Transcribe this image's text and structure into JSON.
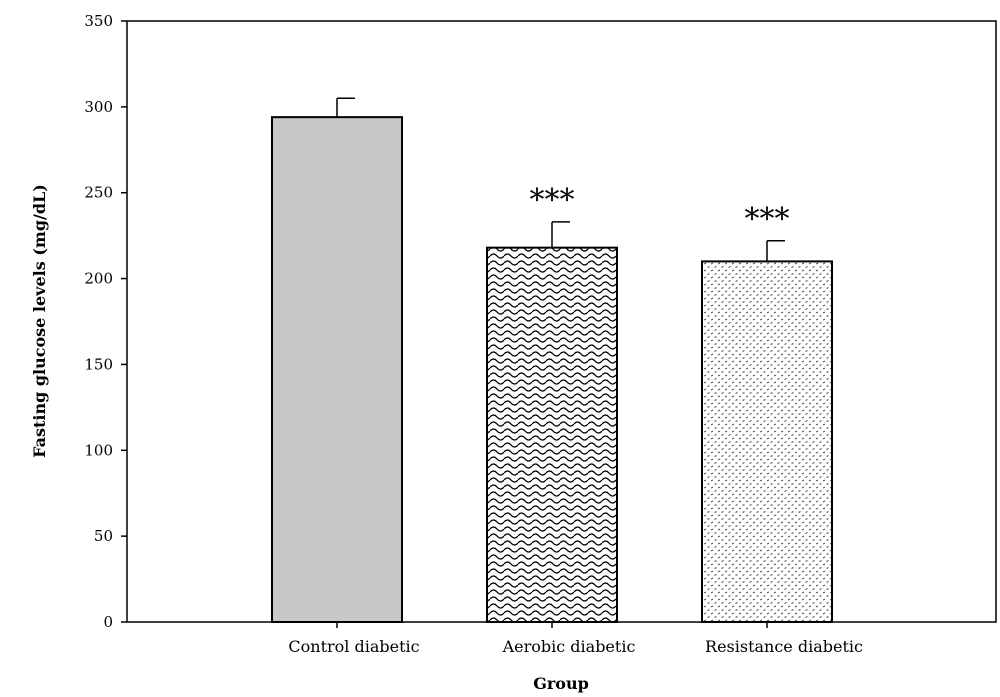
{
  "chart_data": {
    "type": "bar",
    "categories": [
      "Control diabetic",
      "Aerobic diabetic",
      "Resistance diabetic"
    ],
    "values": [
      294,
      218,
      210
    ],
    "error_upper": [
      305,
      233,
      222
    ],
    "annotations": [
      "",
      "***",
      "***"
    ],
    "xlabel": "Group",
    "ylabel": "Fasting glucose levels (mg/dL)",
    "ylim": [
      0,
      350
    ],
    "yticks": [
      0,
      50,
      100,
      150,
      200,
      250,
      300,
      350
    ],
    "grid": false,
    "legend": "none",
    "bar_patterns": [
      "solid",
      "zigzag",
      "dots"
    ],
    "colors": {
      "control": "#c6c9c6",
      "edge": "#000000"
    }
  }
}
